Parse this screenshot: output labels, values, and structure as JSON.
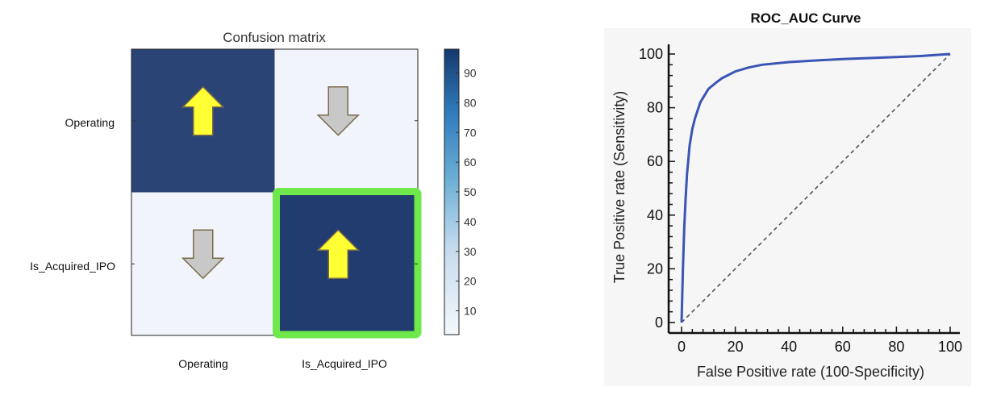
{
  "confusion_chart": {
    "title": "Confusion matrix",
    "row_labels": [
      "Operating",
      "Is_Acquired_IPO"
    ],
    "col_labels": [
      "Operating",
      "Is_Acquired_IPO"
    ],
    "colorbar_ticks": [
      "90",
      "80",
      "70",
      "60",
      "50",
      "40",
      "30",
      "20",
      "10"
    ],
    "arrows": [
      [
        "up",
        "down"
      ],
      [
        "down",
        "up"
      ]
    ],
    "highlighted_cell": [
      1,
      1
    ],
    "colors": {
      "high": "#1f3a6e",
      "low": "#f1f5fb",
      "highlight": "#6ee84a",
      "arrow_good": "#ffff33",
      "arrow_bad": "#c8c8c8"
    }
  },
  "roc_chart": {
    "title": "ROC_AUC Curve",
    "xlabel": "False Positive rate (100-Specificity)",
    "ylabel": "True Positive rate (Sensitivity)",
    "x_ticks": [
      "0",
      "20",
      "40",
      "60",
      "80",
      "100"
    ],
    "y_ticks": [
      "0",
      "20",
      "40",
      "60",
      "80",
      "100"
    ],
    "colors": {
      "curve": "#3a55b4",
      "background": "#f6f6f6",
      "diagonal": "#555555"
    }
  },
  "chart_data": [
    {
      "type": "heatmap",
      "title": "Confusion matrix",
      "rows": [
        "Operating",
        "Is_Acquired_IPO"
      ],
      "columns": [
        "Operating",
        "Is_Acquired_IPO"
      ],
      "values": [
        [
          93,
          2
        ],
        [
          2,
          97
        ]
      ],
      "colorbar_range": [
        2,
        98
      ],
      "grid": false
    },
    {
      "type": "line",
      "title": "ROC_AUC Curve",
      "xlabel": "False Positive rate (100-Specificity)",
      "ylabel": "True Positive rate (Sensitivity)",
      "xlim": [
        0,
        100
      ],
      "ylim": [
        0,
        100
      ],
      "grid": false,
      "series": [
        {
          "x": [
            0,
            0.5,
            1,
            1.5,
            2,
            3,
            4,
            5,
            7,
            10,
            13,
            15,
            20,
            25,
            30,
            40,
            50,
            60,
            70,
            80,
            90,
            100
          ],
          "y": [
            0,
            20,
            35,
            46,
            55,
            66,
            72,
            76,
            82,
            87,
            89.5,
            91,
            93.5,
            95,
            96,
            97,
            97.6,
            98.1,
            98.5,
            98.9,
            99.3,
            100
          ]
        },
        {
          "x": [
            0,
            100
          ],
          "y": [
            0,
            100
          ]
        }
      ]
    }
  ]
}
